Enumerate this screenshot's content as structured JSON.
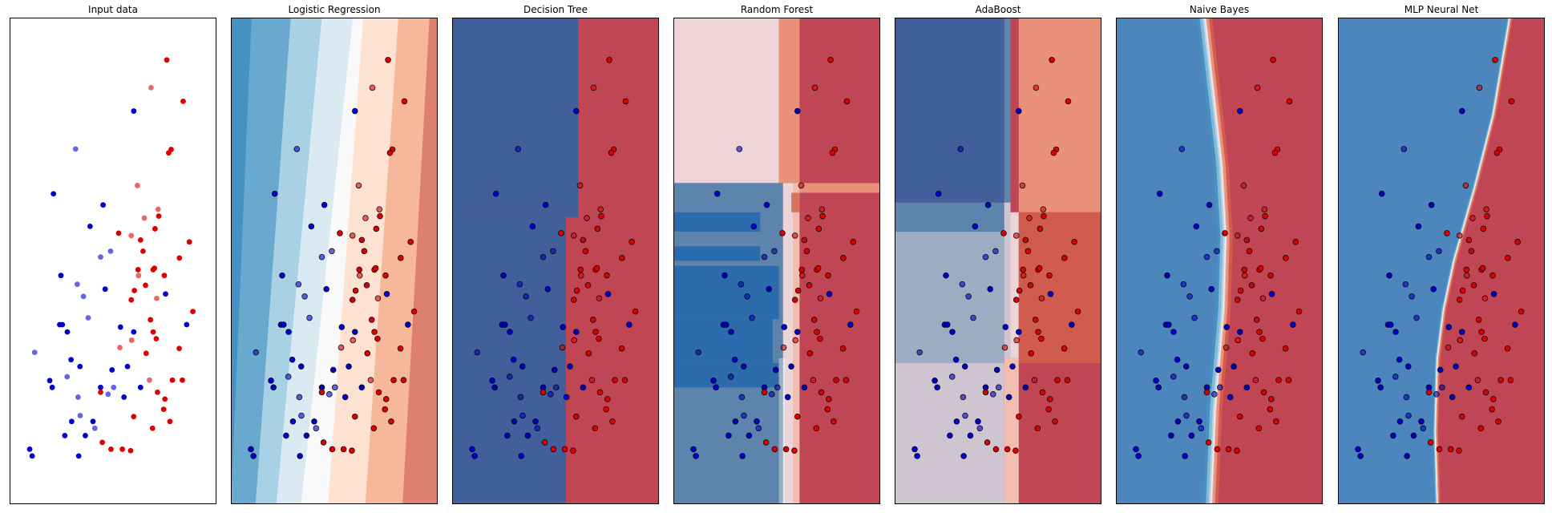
{
  "colors": {
    "class0": "#0000cc",
    "class1": "#dd0000",
    "region_scale": [
      "#2166ac",
      "#4393c3",
      "#92c5de",
      "#d1e5f0",
      "#f7f7f7",
      "#fddbc7",
      "#f4a582",
      "#d6604d",
      "#b2182b"
    ]
  },
  "chart_data": [
    {
      "type": "scatter",
      "title": "Input data",
      "xlim": [
        0,
        10
      ],
      "ylim": [
        0,
        10
      ],
      "grid": false,
      "background": "none",
      "train_class0": [
        [
          6.0,
          8.08
        ],
        [
          2.12,
          6.38
        ],
        [
          4.52,
          6.15
        ],
        [
          3.89,
          5.71
        ],
        [
          2.42,
          3.69
        ],
        [
          2.55,
          3.69
        ],
        [
          2.97,
          2.97
        ],
        [
          3.4,
          2.83
        ],
        [
          6.0,
          3.54
        ],
        [
          2.79,
          3.54
        ],
        [
          4.4,
          2.4
        ],
        [
          2.06,
          2.4
        ],
        [
          1.94,
          2.54
        ],
        [
          3.0,
          1.7
        ],
        [
          4.03,
          1.7
        ],
        [
          3.66,
          1.41
        ],
        [
          1.09,
          0.99
        ],
        [
          0.97,
          1.13
        ],
        [
          2.67,
          1.41
        ],
        [
          3.34,
          0.99
        ],
        [
          5.7,
          2.83
        ],
        [
          2.48,
          4.7
        ],
        [
          4.62,
          4.42
        ],
        [
          5.36,
          3.64
        ],
        [
          4.95,
          2.76
        ],
        [
          5.53,
          2.2
        ],
        [
          6.33,
          2.4
        ],
        [
          7.54,
          4.32
        ],
        [
          8.56,
          3.69
        ]
      ],
      "train_class1": [
        [
          7.6,
          9.13
        ],
        [
          8.39,
          8.28
        ],
        [
          7.81,
          7.29
        ],
        [
          7.69,
          7.22
        ],
        [
          7.21,
          5.92
        ],
        [
          7.03,
          5.66
        ],
        [
          5.27,
          5.57
        ],
        [
          6.33,
          5.43
        ],
        [
          6.45,
          5.2
        ],
        [
          6.94,
          4.82
        ],
        [
          6.21,
          4.82
        ],
        [
          8.69,
          5.39
        ],
        [
          8.21,
          5.06
        ],
        [
          6.03,
          4.39
        ],
        [
          6.57,
          4.5
        ],
        [
          7.0,
          4.85
        ],
        [
          7.48,
          4.7
        ],
        [
          5.88,
          4.2
        ],
        [
          8.86,
          3.96
        ],
        [
          6.81,
          3.79
        ],
        [
          6.94,
          3.54
        ],
        [
          7.09,
          3.4
        ],
        [
          8.2,
          3.2
        ],
        [
          8.35,
          2.55
        ],
        [
          7.87,
          2.55
        ],
        [
          7.51,
          2.16
        ],
        [
          7.75,
          1.7
        ],
        [
          6.91,
          1.56
        ],
        [
          5.45,
          1.13
        ],
        [
          5.85,
          1.1
        ],
        [
          4.9,
          1.13
        ],
        [
          4.48,
          1.27
        ],
        [
          4.4,
          2.3
        ],
        [
          6.6,
          3.1
        ],
        [
          7.15,
          2.3
        ],
        [
          7.45,
          1.95
        ],
        [
          6.0,
          1.8
        ]
      ],
      "test_class0": [
        [
          3.19,
          7.3
        ],
        [
          4.4,
          5.08
        ],
        [
          4.88,
          5.2
        ],
        [
          3.27,
          4.52
        ],
        [
          3.57,
          4.27
        ],
        [
          3.8,
          3.83
        ],
        [
          1.21,
          3.12
        ],
        [
          3.41,
          1.82
        ],
        [
          4.76,
          2.26
        ],
        [
          2.78,
          2.62
        ],
        [
          3.31,
          2.2
        ],
        [
          4.12,
          1.56
        ],
        [
          5.03,
          2.4
        ]
      ],
      "test_class1": [
        [
          6.84,
          8.56
        ],
        [
          6.18,
          6.55
        ],
        [
          7.18,
          6.06
        ],
        [
          6.51,
          5.88
        ],
        [
          5.88,
          5.52
        ],
        [
          5.33,
          3.22
        ],
        [
          6.76,
          2.55
        ],
        [
          5.9,
          3.37
        ],
        [
          6.23,
          4.7
        ],
        [
          7.11,
          4.23
        ]
      ]
    },
    {
      "type": "heatmap",
      "title": "Logistic Regression",
      "xlim": [
        0,
        10
      ],
      "ylim": [
        0,
        10
      ],
      "grid": false,
      "regions": [
        {
          "level": 0,
          "bottom": [
            0.0,
            0.0
          ],
          "top": [
            0.0,
            1.0
          ]
        },
        {
          "level": 1,
          "bottom": [
            0.0,
            1.2
          ],
          "top": [
            0.0,
            2.9
          ]
        },
        {
          "level": 2,
          "bottom": [
            1.2,
            2.2
          ],
          "top": [
            2.9,
            4.4
          ]
        },
        {
          "level": 3,
          "bottom": [
            2.2,
            3.4
          ],
          "top": [
            4.4,
            5.9
          ]
        },
        {
          "level": 4,
          "bottom": [
            3.4,
            4.7
          ],
          "top": [
            5.9,
            6.4
          ]
        },
        {
          "level": 5,
          "bottom": [
            4.7,
            6.5
          ],
          "top": [
            6.4,
            8.1
          ]
        },
        {
          "level": 6,
          "bottom": [
            6.5,
            8.3
          ],
          "top": [
            8.1,
            9.6
          ]
        },
        {
          "level": 7,
          "bottom": [
            8.3,
            10.0
          ],
          "top": [
            9.6,
            10.0
          ]
        }
      ]
    },
    {
      "type": "heatmap",
      "title": "Decision Tree",
      "xlim": [
        0,
        10
      ],
      "ylim": [
        0,
        10
      ],
      "grid": false,
      "background_level": 8,
      "rects": [
        {
          "level": 0,
          "x": [
            0.0,
            6.1
          ],
          "y": [
            5.9,
            10.0
          ]
        },
        {
          "level": 0,
          "x": [
            0.0,
            5.15
          ],
          "y": [
            0.0,
            5.9
          ]
        },
        {
          "level": 0,
          "x": [
            5.15,
            6.1
          ],
          "y": [
            5.9,
            5.9
          ]
        },
        {
          "level": 0,
          "x": [
            5.15,
            5.5
          ],
          "y": [
            0.0,
            5.9
          ]
        }
      ]
    },
    {
      "type": "heatmap",
      "title": "Random Forest",
      "xlim": [
        0,
        10
      ],
      "ylim": [
        0,
        10
      ],
      "grid": false,
      "background_level": 8,
      "rects": [
        {
          "level": 4,
          "x": [
            0.0,
            5.1
          ],
          "y": [
            6.6,
            10.0
          ]
        },
        {
          "level": 6,
          "x": [
            5.1,
            6.1
          ],
          "y": [
            6.6,
            10.0
          ]
        },
        {
          "level": 1,
          "x": [
            0.0,
            5.1
          ],
          "y": [
            0.0,
            6.6
          ]
        },
        {
          "level": 0,
          "x": [
            0.0,
            4.2
          ],
          "y": [
            5.6,
            6.0
          ]
        },
        {
          "level": 0,
          "x": [
            0.0,
            4.2
          ],
          "y": [
            5.0,
            5.3
          ]
        },
        {
          "level": 0,
          "x": [
            0.0,
            5.1
          ],
          "y": [
            3.8,
            4.9
          ]
        },
        {
          "level": 0,
          "x": [
            0.0,
            5.1
          ],
          "y": [
            2.4,
            2.9
          ]
        },
        {
          "level": 0,
          "x": [
            0.0,
            4.8
          ],
          "y": [
            2.9,
            3.8
          ]
        },
        {
          "level": 1,
          "x": [
            5.1,
            5.3
          ],
          "y": [
            3.0,
            6.6
          ]
        },
        {
          "level": 2,
          "x": [
            5.1,
            5.4
          ],
          "y": [
            0.0,
            3.0
          ]
        },
        {
          "level": 4,
          "x": [
            5.3,
            5.8
          ],
          "y": [
            0.0,
            6.6
          ]
        },
        {
          "level": 5,
          "x": [
            5.8,
            6.1
          ],
          "y": [
            0.0,
            6.6
          ]
        },
        {
          "level": 6,
          "x": [
            6.1,
            10.0
          ],
          "y": [
            6.4,
            6.6
          ]
        },
        {
          "level": 7,
          "x": [
            5.7,
            6.1
          ],
          "y": [
            6.0,
            6.4
          ]
        }
      ]
    },
    {
      "type": "heatmap",
      "title": "AdaBoost",
      "xlim": [
        0,
        10
      ],
      "ylim": [
        0,
        10
      ],
      "grid": false,
      "background_level": 8,
      "rects": [
        {
          "level": 0,
          "x": [
            0.0,
            5.3
          ],
          "y": [
            6.2,
            10.0
          ]
        },
        {
          "level": 1,
          "x": [
            5.3,
            5.6
          ],
          "y": [
            6.2,
            10.0
          ]
        },
        {
          "level": 6,
          "x": [
            6.0,
            10.0
          ],
          "y": [
            6.0,
            10.0
          ]
        },
        {
          "level": 1,
          "x": [
            0.0,
            5.3
          ],
          "y": [
            5.6,
            6.2
          ]
        },
        {
          "level": 2,
          "x": [
            0.0,
            5.3
          ],
          "y": [
            2.9,
            5.6
          ]
        },
        {
          "level": 3,
          "x": [
            0.0,
            5.3
          ],
          "y": [
            0.0,
            2.9
          ]
        },
        {
          "level": 3,
          "x": [
            5.3,
            5.6
          ],
          "y": [
            3.0,
            6.2
          ]
        },
        {
          "level": 4,
          "x": [
            5.6,
            6.0
          ],
          "y": [
            3.0,
            6.0
          ]
        },
        {
          "level": 5,
          "x": [
            5.3,
            6.0
          ],
          "y": [
            0.0,
            3.0
          ]
        },
        {
          "level": 7,
          "x": [
            6.0,
            10.0
          ],
          "y": [
            2.9,
            6.0
          ]
        }
      ]
    },
    {
      "type": "heatmap",
      "title": "Naive Bayes",
      "xlim": [
        0,
        10
      ],
      "ylim": [
        0,
        10
      ],
      "grid": false,
      "boundary_y": [
        0.0,
        2.0,
        4.0,
        5.5,
        7.0,
        8.5,
        10.0
      ],
      "boundary_x": [
        4.6,
        4.8,
        5.2,
        5.3,
        5.1,
        4.7,
        4.3
      ],
      "bands": [
        {
          "level": 1,
          "offset": -0.4
        },
        {
          "level": 2,
          "offset": -0.25
        },
        {
          "level": 3,
          "offset": -0.12
        },
        {
          "level": 5,
          "offset": 0.08
        },
        {
          "level": 6,
          "offset": 0.2
        },
        {
          "level": 7,
          "offset": 0.35
        }
      ]
    },
    {
      "type": "heatmap",
      "title": "MLP Neural Net",
      "xlim": [
        0,
        10
      ],
      "ylim": [
        0,
        10
      ],
      "grid": false,
      "boundary_y": [
        0.0,
        1.5,
        3.0,
        4.0,
        5.0,
        6.5,
        8.0,
        10.0
      ],
      "boundary_x": [
        4.8,
        4.7,
        4.8,
        5.1,
        5.6,
        6.6,
        7.5,
        8.3
      ],
      "bands": [
        {
          "level": 1,
          "offset": -0.15
        },
        {
          "level": 2,
          "offset": -0.08
        },
        {
          "level": 3,
          "offset": -0.03
        },
        {
          "level": 5,
          "offset": 0.04
        },
        {
          "level": 6,
          "offset": 0.1
        },
        {
          "level": 7,
          "offset": 0.16
        }
      ]
    }
  ]
}
